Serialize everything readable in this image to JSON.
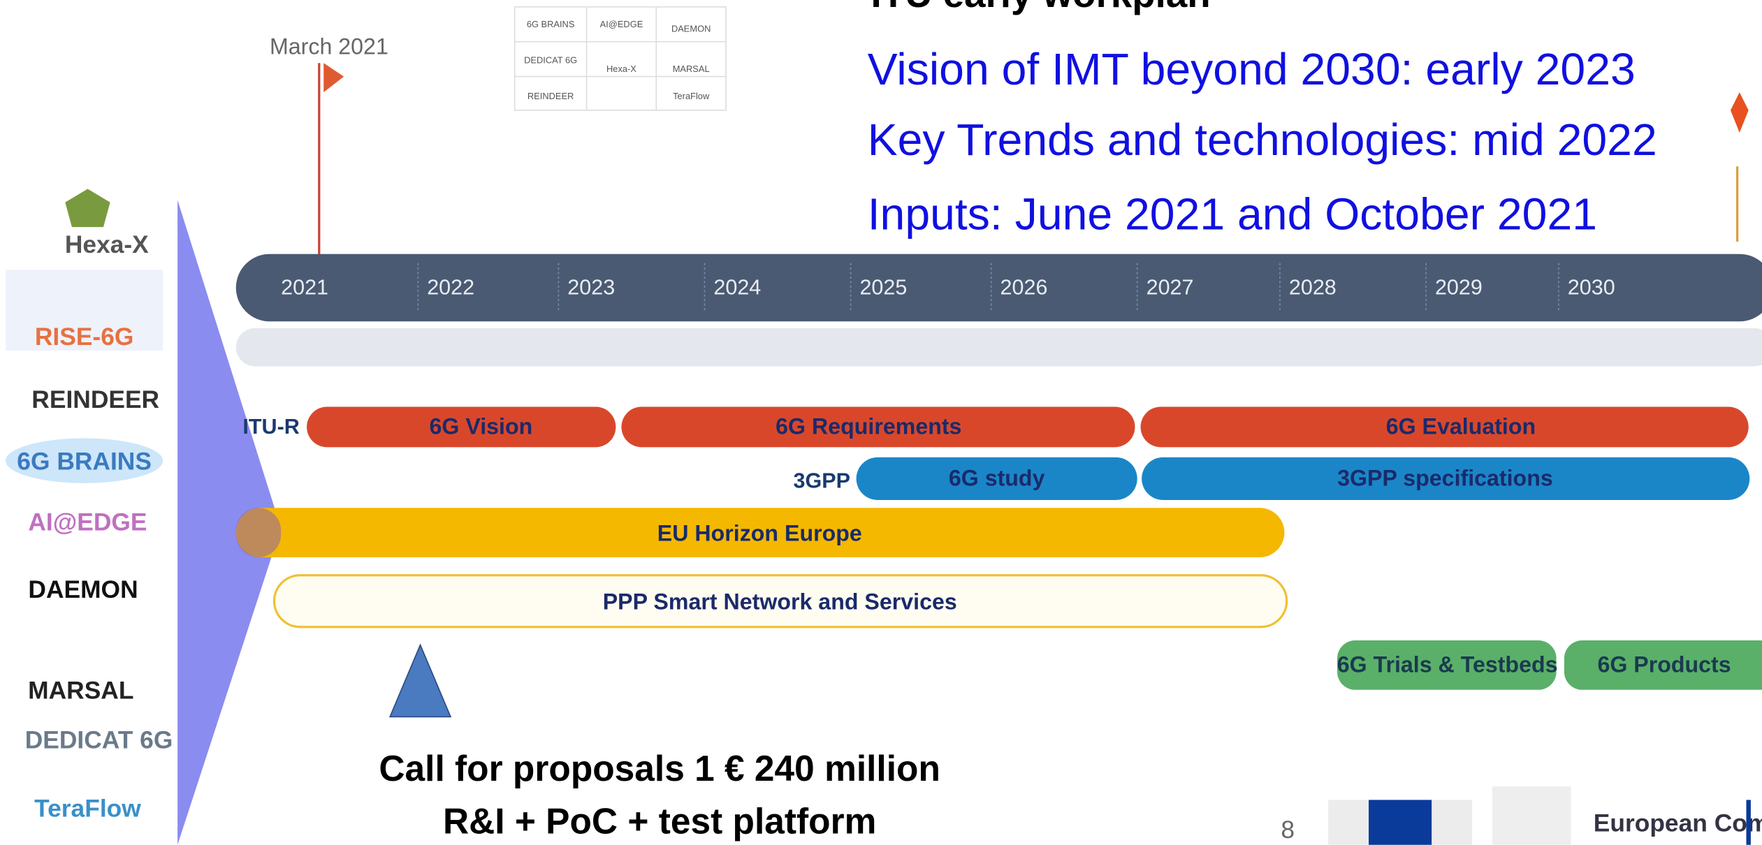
{
  "header": {
    "title": "ITU early workplan",
    "lines": [
      "Vision of IMT beyond 2030: early 2023",
      "Key Trends and technologies: mid 2022",
      "Inputs: June 2021 and October 2021"
    ]
  },
  "milestone": "March 2021",
  "thumbnail_logos": [
    "6G BRAINS",
    "AI@EDGE",
    "DAEMON",
    "DEDICAT 6G",
    "Hexa-X",
    "MARSAL",
    "REINDEER",
    "TeraFlow"
  ],
  "timeline": {
    "years": [
      "2021",
      "2022",
      "2023",
      "2024",
      "2025",
      "2026",
      "2027",
      "2028",
      "2029",
      "2030"
    ]
  },
  "rows": {
    "itu_label": "ITU-R",
    "itu": [
      "6G Vision",
      "6G Requirements",
      "6G Evaluation"
    ],
    "gpp_label": "3GPP",
    "gpp": [
      "6G study",
      "3GPP specifications"
    ],
    "eu": "EU Horizon Europe",
    "ppp": "PPP Smart Network and Services",
    "later": [
      "6G Trials & Testbeds",
      "6G Products"
    ]
  },
  "projects": [
    "Hexa-X",
    "RISE-6G",
    "REINDEER",
    "6G BRAINS",
    "AI@EDGE",
    "DAEMON",
    "MARSAL",
    "DEDICAT 6G",
    "TeraFlow"
  ],
  "call": [
    "Call for proposals 1 € 240 million",
    "R&I + PoC + test platform"
  ],
  "page_number": "8",
  "footer": "European Commission"
}
